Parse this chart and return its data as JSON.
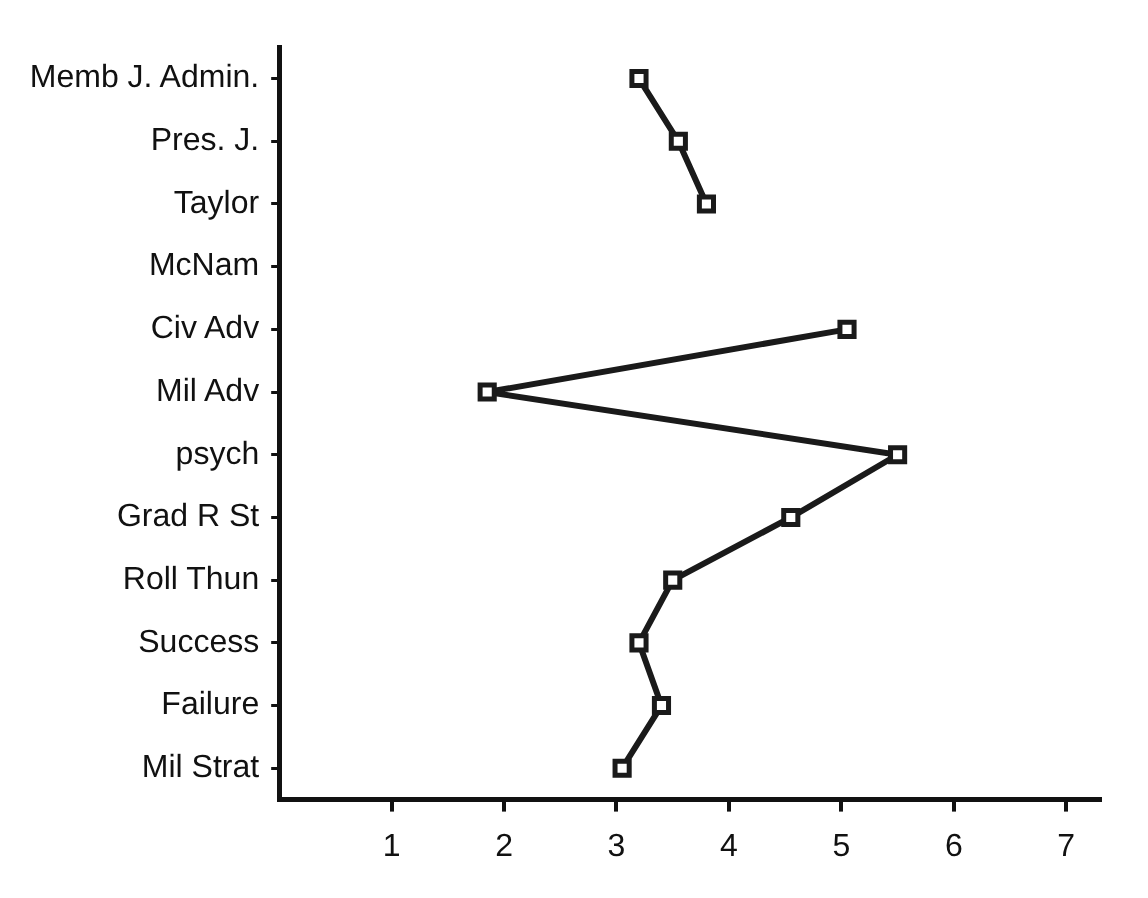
{
  "chart_data": {
    "type": "line",
    "orientation": "horizontal",
    "categories": [
      "Memb J. Admin.",
      "Pres. J.",
      "Taylor",
      "McNam",
      "Civ Adv",
      "Mil Adv",
      "psych",
      "Grad R St",
      "Roll Thun",
      "Success",
      "Failure",
      "Mil Strat"
    ],
    "series": [
      {
        "color": "#1a1a1a",
        "values": [
          3.2,
          3.55,
          3.8,
          null,
          5.05,
          1.85,
          5.5,
          4.55,
          3.5,
          3.2,
          3.4,
          3.05
        ]
      }
    ],
    "xlim": [
      0,
      7.3
    ],
    "xticks": [
      1,
      2,
      3,
      4,
      5,
      6,
      7
    ],
    "grid": false,
    "legend": false,
    "marker": "square",
    "line_style": "solid"
  }
}
